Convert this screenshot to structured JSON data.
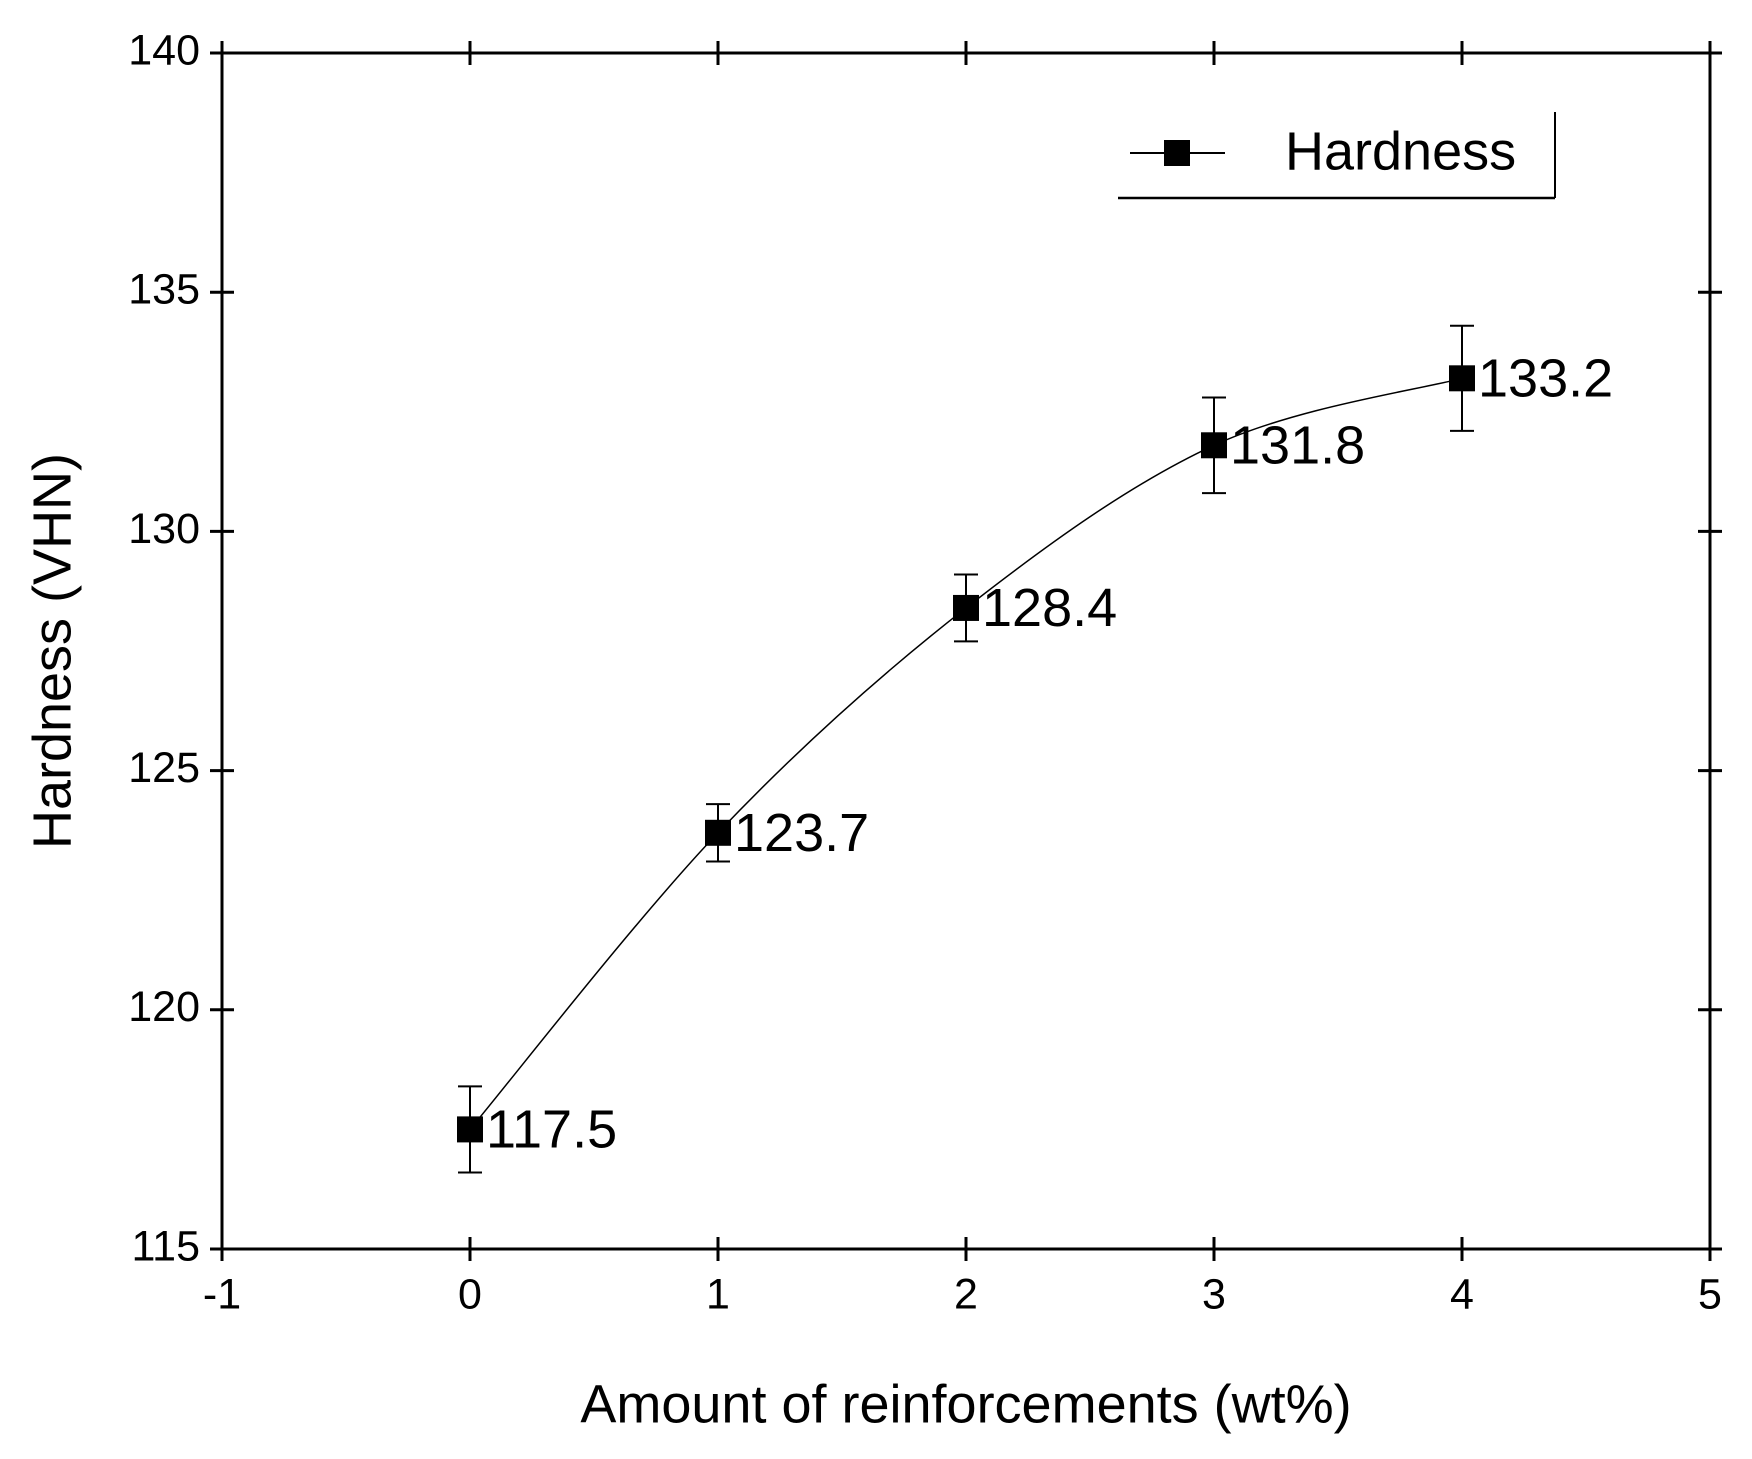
{
  "chart_data": {
    "type": "line",
    "xlabel": "Amount of reinforcements (wt%)",
    "ylabel": "Hardness (VHN)",
    "x": [
      0,
      1,
      2,
      3,
      4
    ],
    "series": [
      {
        "name": "Hardness",
        "color": "#000000",
        "values": [
          117.5,
          123.7,
          128.4,
          131.8,
          133.2
        ],
        "errors": [
          0.9,
          0.6,
          0.7,
          1.0,
          1.1
        ]
      }
    ],
    "xlim": [
      -1,
      5
    ],
    "xticks": [
      -1,
      0,
      1,
      2,
      3,
      4,
      5
    ],
    "ylim": [
      115,
      140
    ],
    "yticks": [
      115,
      120,
      125,
      130,
      135,
      140
    ],
    "legend": "upper right",
    "smooth": true,
    "data_labels": true
  }
}
